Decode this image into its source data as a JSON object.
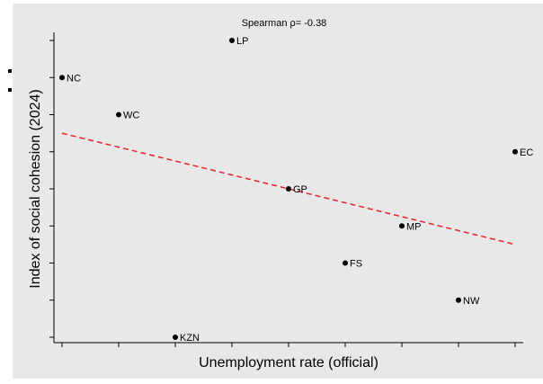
{
  "chart_data": {
    "type": "scatter",
    "title": "Spearman ρ= -0.38",
    "xlabel": "Unemployment rate (official)",
    "ylabel": "Index of social cohesion (2024)",
    "xlim": [
      0,
      8
    ],
    "ylim": [
      0,
      8
    ],
    "grid": false,
    "legend": "none",
    "points": [
      {
        "label": "LP",
        "x": 3,
        "y": 8
      },
      {
        "label": "NC",
        "x": 0,
        "y": 7
      },
      {
        "label": "WC",
        "x": 1,
        "y": 6
      },
      {
        "label": "EC",
        "x": 8,
        "y": 5
      },
      {
        "label": "GP",
        "x": 4,
        "y": 4
      },
      {
        "label": "MP",
        "x": 6,
        "y": 3
      },
      {
        "label": "FS",
        "x": 5,
        "y": 2
      },
      {
        "label": "NW",
        "x": 7,
        "y": 1
      },
      {
        "label": "KZN",
        "x": 2,
        "y": 0
      }
    ],
    "fit_line": {
      "style": "dashed",
      "color": "#e8242a",
      "x": [
        0,
        8
      ],
      "y": [
        5.5,
        2.5
      ]
    },
    "colors": {
      "point": "#000000",
      "fit": "#e8242a",
      "panel": "#e8e8e8"
    }
  }
}
